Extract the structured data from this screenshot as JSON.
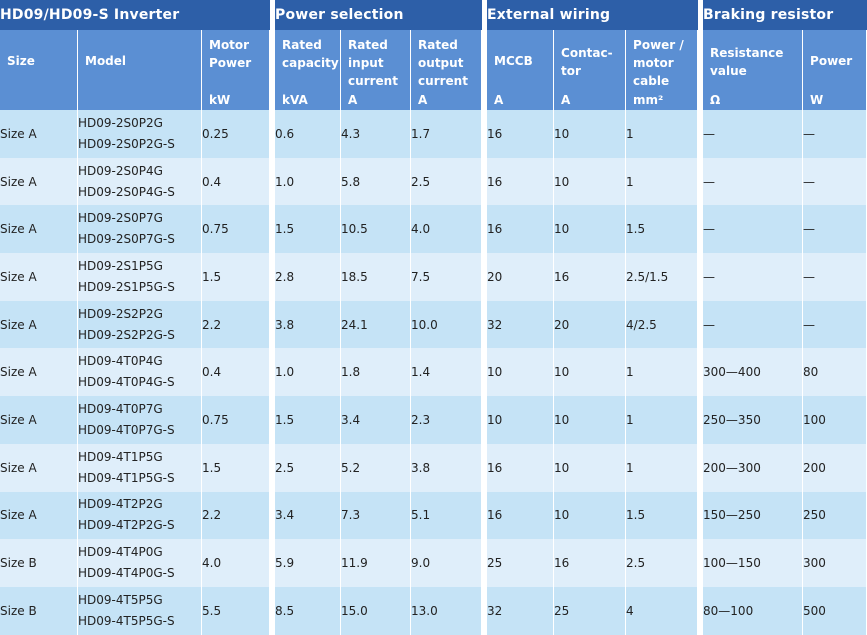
{
  "groups": {
    "inverter": "HD09/HD09-S Inverter",
    "power_selection": "Power selection",
    "external_wiring": "External wiring",
    "braking_resistor": "Braking resistor"
  },
  "columns": {
    "size": {
      "label": "Size",
      "unit": ""
    },
    "model": {
      "label": "Model",
      "unit": ""
    },
    "motor_power": {
      "label": "Motor Power",
      "unit": "kW"
    },
    "rated_capacity": {
      "label": "Rated capacity",
      "unit": "kVA"
    },
    "rated_input_current": {
      "label": "Rated input current",
      "unit": "A"
    },
    "rated_output_current": {
      "label": "Rated output current",
      "unit": "A"
    },
    "mccb": {
      "label": "MCCB",
      "unit": "A"
    },
    "contactor": {
      "label": "Contac-tor",
      "unit": "A"
    },
    "power_motor_cable": {
      "label": "Power / motor cable",
      "unit": "mm²"
    },
    "resistance_value": {
      "label": "Resistance value",
      "unit": "Ω"
    },
    "braking_power": {
      "label": "Power",
      "unit": "W"
    }
  },
  "rows": [
    {
      "size": "Size A",
      "model1": "HD09-2S0P2G",
      "model2": "HD09-2S0P2G-S",
      "motor_power": "0.25",
      "rated_capacity": "0.6",
      "rated_input_current": "4.3",
      "rated_output_current": "1.7",
      "mccb": "16",
      "contactor": "10",
      "cable": "1",
      "resistance": "—",
      "braking_power": "—"
    },
    {
      "size": "Size A",
      "model1": "HD09-2S0P4G",
      "model2": "HD09-2S0P4G-S",
      "motor_power": "0.4",
      "rated_capacity": "1.0",
      "rated_input_current": "5.8",
      "rated_output_current": "2.5",
      "mccb": "16",
      "contactor": "10",
      "cable": "1",
      "resistance": "—",
      "braking_power": "—"
    },
    {
      "size": "Size A",
      "model1": "HD09-2S0P7G",
      "model2": "HD09-2S0P7G-S",
      "motor_power": "0.75",
      "rated_capacity": "1.5",
      "rated_input_current": "10.5",
      "rated_output_current": "4.0",
      "mccb": "16",
      "contactor": "10",
      "cable": "1.5",
      "resistance": "—",
      "braking_power": "—"
    },
    {
      "size": "Size A",
      "model1": "HD09-2S1P5G",
      "model2": "HD09-2S1P5G-S",
      "motor_power": "1.5",
      "rated_capacity": "2.8",
      "rated_input_current": "18.5",
      "rated_output_current": "7.5",
      "mccb": "20",
      "contactor": "16",
      "cable": "2.5/1.5",
      "resistance": "—",
      "braking_power": "—"
    },
    {
      "size": "Size A",
      "model1": "HD09-2S2P2G",
      "model2": "HD09-2S2P2G-S",
      "motor_power": "2.2",
      "rated_capacity": "3.8",
      "rated_input_current": "24.1",
      "rated_output_current": "10.0",
      "mccb": "32",
      "contactor": "20",
      "cable": "4/2.5",
      "resistance": "—",
      "braking_power": "—"
    },
    {
      "size": "Size A",
      "model1": "HD09-4T0P4G",
      "model2": "HD09-4T0P4G-S",
      "motor_power": "0.4",
      "rated_capacity": "1.0",
      "rated_input_current": "1.8",
      "rated_output_current": "1.4",
      "mccb": "10",
      "contactor": "10",
      "cable": "1",
      "resistance": "300—400",
      "braking_power": "80"
    },
    {
      "size": "Size A",
      "model1": "HD09-4T0P7G",
      "model2": "HD09-4T0P7G-S",
      "motor_power": "0.75",
      "rated_capacity": "1.5",
      "rated_input_current": "3.4",
      "rated_output_current": "2.3",
      "mccb": "10",
      "contactor": "10",
      "cable": "1",
      "resistance": "250—350",
      "braking_power": "100"
    },
    {
      "size": "Size A",
      "model1": "HD09-4T1P5G",
      "model2": "HD09-4T1P5G-S",
      "motor_power": "1.5",
      "rated_capacity": "2.5",
      "rated_input_current": "5.2",
      "rated_output_current": "3.8",
      "mccb": "16",
      "contactor": "10",
      "cable": "1",
      "resistance": "200—300",
      "braking_power": "200"
    },
    {
      "size": "Size A",
      "model1": "HD09-4T2P2G",
      "model2": "HD09-4T2P2G-S",
      "motor_power": "2.2",
      "rated_capacity": "3.4",
      "rated_input_current": "7.3",
      "rated_output_current": "5.1",
      "mccb": "16",
      "contactor": "10",
      "cable": "1.5",
      "resistance": "150—250",
      "braking_power": "250"
    },
    {
      "size": "Size B",
      "model1": "HD09-4T4P0G",
      "model2": "HD09-4T4P0G-S",
      "motor_power": "4.0",
      "rated_capacity": "5.9",
      "rated_input_current": "11.9",
      "rated_output_current": "9.0",
      "mccb": "25",
      "contactor": "16",
      "cable": "2.5",
      "resistance": "100—150",
      "braking_power": "300"
    },
    {
      "size": "Size B",
      "model1": "HD09-4T5P5G",
      "model2": "HD09-4T5P5G-S",
      "motor_power": "5.5",
      "rated_capacity": "8.5",
      "rated_input_current": "15.0",
      "rated_output_current": "13.0",
      "mccb": "32",
      "contactor": "25",
      "cable": "4",
      "resistance": "80—100",
      "braking_power": "500"
    }
  ],
  "colors": {
    "group_header": "#2d5fa8",
    "column_header": "#5b8fd3",
    "row_a": "#c5e3f6",
    "row_b": "#dfeefa"
  }
}
